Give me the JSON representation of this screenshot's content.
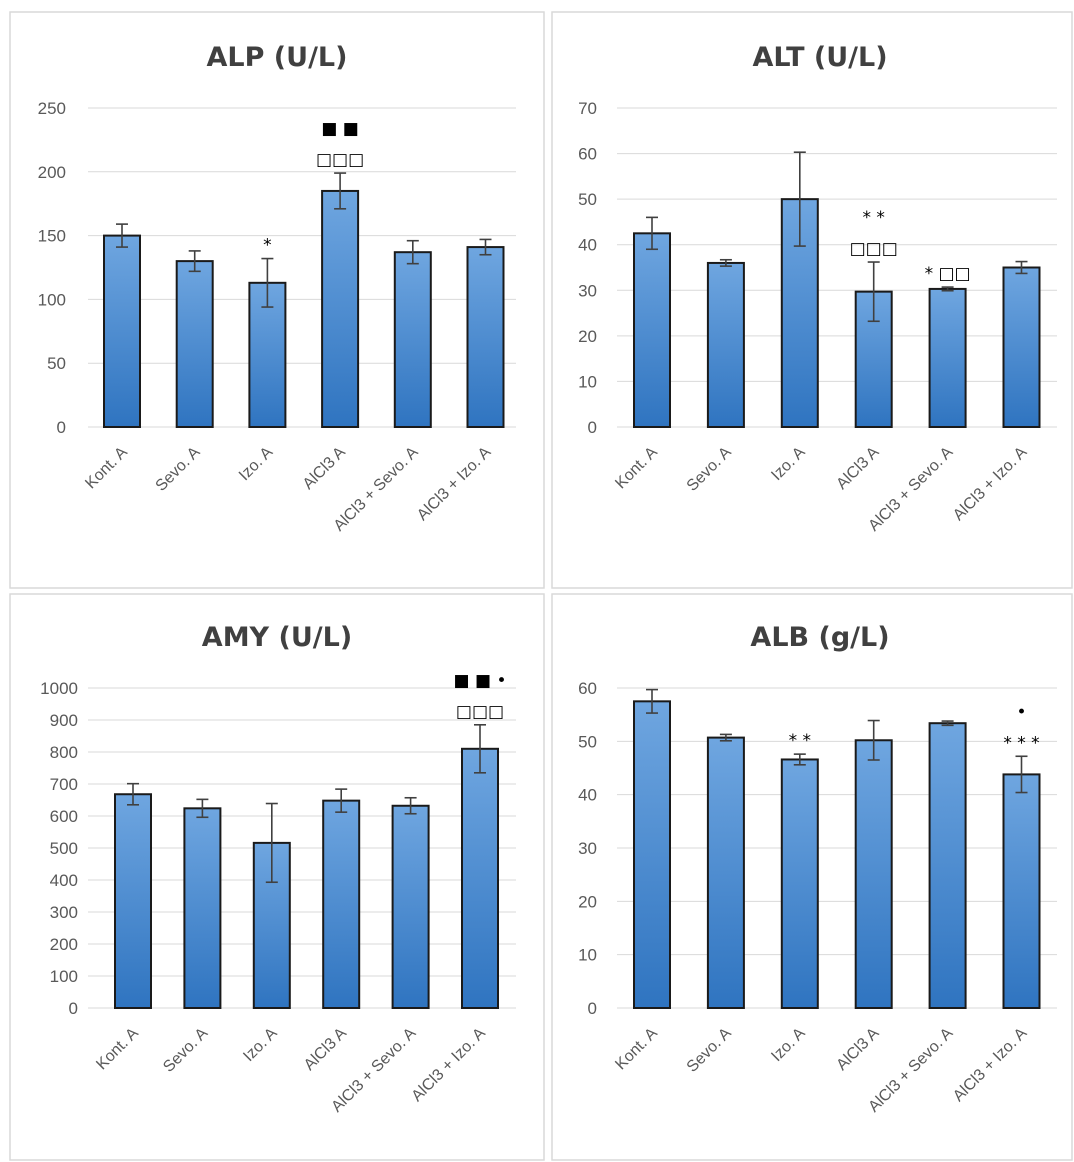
{
  "chart_data": [
    {
      "type": "bar",
      "title": "ALP (U/L)",
      "categories": [
        "Kont. A",
        "Sevo. A",
        "Izo. A",
        "AlCl3 A",
        "AlCl3 + Sevo. A",
        "AlCl3 + Izo. A"
      ],
      "values": [
        150,
        130,
        113,
        185,
        137,
        141
      ],
      "errors": [
        9,
        8,
        19,
        14,
        9,
        6
      ],
      "ylim": [
        0,
        250
      ],
      "yticks": [
        0,
        50,
        100,
        150,
        200,
        250
      ],
      "grid": true,
      "annotations": [
        {
          "category": 2,
          "lines": [
            "*"
          ]
        },
        {
          "category": 3,
          "lines": [
            "■ ■",
            "□□□"
          ]
        }
      ]
    },
    {
      "type": "bar",
      "title": "ALT (U/L)",
      "categories": [
        "Kont. A",
        "Sevo. A",
        "Izo. A",
        "AlCl3 A",
        "AlCl3 + Sevo. A",
        "AlCl3 + Izo. A"
      ],
      "values": [
        42.5,
        36,
        50,
        29.7,
        30.3,
        35
      ],
      "errors": [
        3.5,
        0.7,
        10.3,
        6.5,
        0.4,
        1.3
      ],
      "ylim": [
        0,
        70
      ],
      "yticks": [
        0,
        10,
        20,
        30,
        40,
        50,
        60,
        70
      ],
      "grid": true,
      "annotations": [
        {
          "category": 3,
          "lines": [
            "* *",
            "□□□"
          ]
        },
        {
          "category": 4,
          "lines": [
            "* □□"
          ]
        }
      ]
    },
    {
      "type": "bar",
      "title": "AMY (U/L)",
      "categories": [
        "Kont. A",
        "Sevo. A",
        "Izo. A",
        "AlCl3 A",
        "AlCl3 + Sevo. A",
        "AlCl3 + Izo. A"
      ],
      "values": [
        668,
        624,
        516,
        648,
        632,
        810
      ],
      "errors": [
        33,
        28,
        123,
        36,
        25,
        75
      ],
      "ylim": [
        0,
        1000
      ],
      "yticks": [
        0,
        100,
        200,
        300,
        400,
        500,
        600,
        700,
        800,
        900,
        1000
      ],
      "grid": true,
      "annotations": [
        {
          "category": 5,
          "lines": [
            "■ ■ •",
            "□□□"
          ]
        }
      ]
    },
    {
      "type": "bar",
      "title": "ALB (g/L)",
      "categories": [
        "Kont. A",
        "Sevo. A",
        "Izo. A",
        "AlCl3 A",
        "AlCl3 + Sevo. A",
        "AlCl3 + Izo. A"
      ],
      "values": [
        57.5,
        50.7,
        46.6,
        50.2,
        53.4,
        43.8
      ],
      "errors": [
        2.2,
        0.6,
        1.0,
        3.7,
        0.4,
        3.4
      ],
      "ylim": [
        0,
        60
      ],
      "yticks": [
        0,
        10,
        20,
        30,
        40,
        50,
        60
      ],
      "grid": true,
      "annotations": [
        {
          "category": 2,
          "lines": [
            "* *"
          ]
        },
        {
          "category": 5,
          "lines": [
            "•",
            "* * *"
          ]
        }
      ]
    }
  ],
  "colors": {
    "bar_top": "#6fa6e0",
    "bar_bottom": "#2f74c0",
    "bar_outline": "#1a1a1a"
  }
}
